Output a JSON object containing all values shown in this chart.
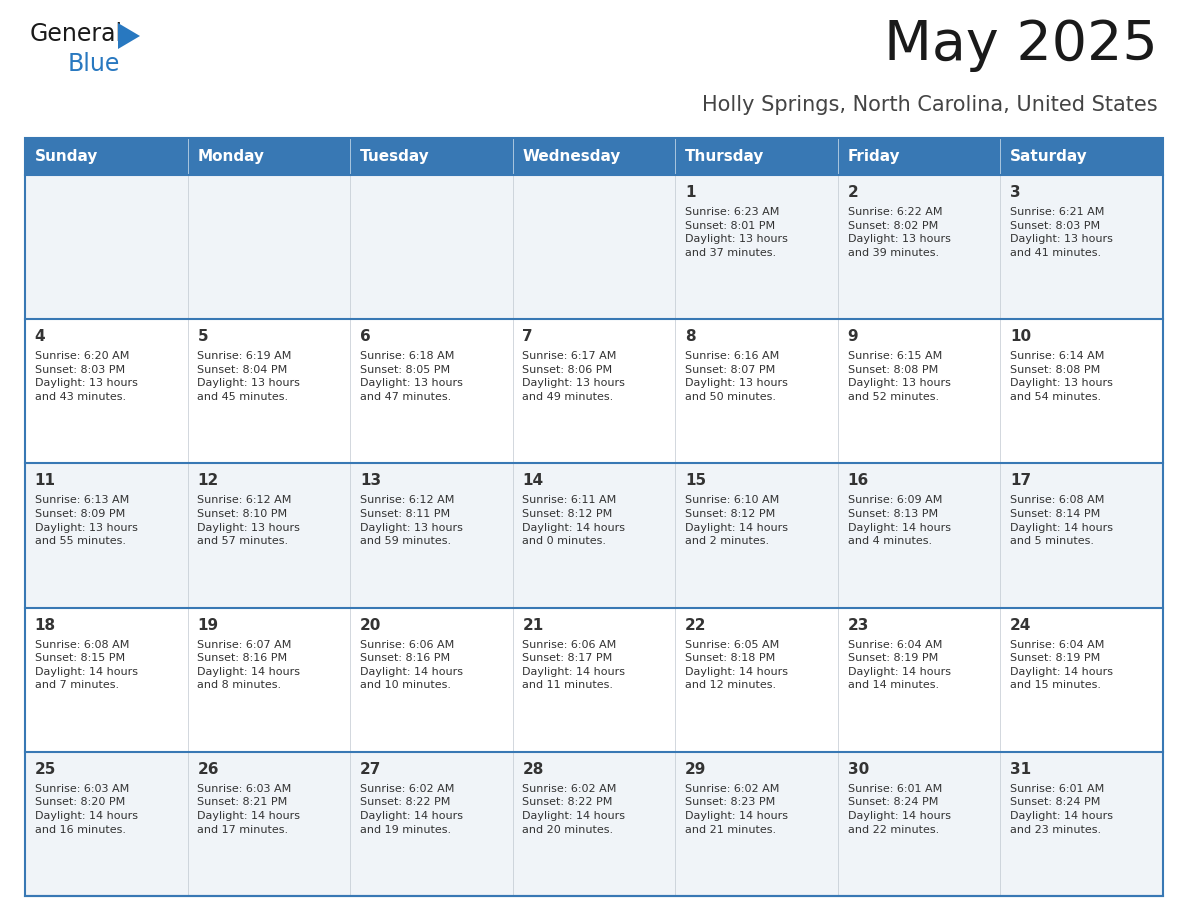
{
  "title": "May 2025",
  "subtitle": "Holly Springs, North Carolina, United States",
  "days_of_week": [
    "Sunday",
    "Monday",
    "Tuesday",
    "Wednesday",
    "Thursday",
    "Friday",
    "Saturday"
  ],
  "header_bg": "#3878b4",
  "header_text_color": "#ffffff",
  "cell_bg_light": "#f0f4f8",
  "cell_bg_white": "#ffffff",
  "divider_color": "#3878b4",
  "text_color": "#333333",
  "day_num_color": "#333333",
  "title_color": "#1a1a1a",
  "subtitle_color": "#444444",
  "logo_general_color": "#1a1a1a",
  "logo_blue_color": "#2878c0",
  "weeks": [
    [
      {
        "day": null,
        "info": null
      },
      {
        "day": null,
        "info": null
      },
      {
        "day": null,
        "info": null
      },
      {
        "day": null,
        "info": null
      },
      {
        "day": 1,
        "info": "Sunrise: 6:23 AM\nSunset: 8:01 PM\nDaylight: 13 hours\nand 37 minutes."
      },
      {
        "day": 2,
        "info": "Sunrise: 6:22 AM\nSunset: 8:02 PM\nDaylight: 13 hours\nand 39 minutes."
      },
      {
        "day": 3,
        "info": "Sunrise: 6:21 AM\nSunset: 8:03 PM\nDaylight: 13 hours\nand 41 minutes."
      }
    ],
    [
      {
        "day": 4,
        "info": "Sunrise: 6:20 AM\nSunset: 8:03 PM\nDaylight: 13 hours\nand 43 minutes."
      },
      {
        "day": 5,
        "info": "Sunrise: 6:19 AM\nSunset: 8:04 PM\nDaylight: 13 hours\nand 45 minutes."
      },
      {
        "day": 6,
        "info": "Sunrise: 6:18 AM\nSunset: 8:05 PM\nDaylight: 13 hours\nand 47 minutes."
      },
      {
        "day": 7,
        "info": "Sunrise: 6:17 AM\nSunset: 8:06 PM\nDaylight: 13 hours\nand 49 minutes."
      },
      {
        "day": 8,
        "info": "Sunrise: 6:16 AM\nSunset: 8:07 PM\nDaylight: 13 hours\nand 50 minutes."
      },
      {
        "day": 9,
        "info": "Sunrise: 6:15 AM\nSunset: 8:08 PM\nDaylight: 13 hours\nand 52 minutes."
      },
      {
        "day": 10,
        "info": "Sunrise: 6:14 AM\nSunset: 8:08 PM\nDaylight: 13 hours\nand 54 minutes."
      }
    ],
    [
      {
        "day": 11,
        "info": "Sunrise: 6:13 AM\nSunset: 8:09 PM\nDaylight: 13 hours\nand 55 minutes."
      },
      {
        "day": 12,
        "info": "Sunrise: 6:12 AM\nSunset: 8:10 PM\nDaylight: 13 hours\nand 57 minutes."
      },
      {
        "day": 13,
        "info": "Sunrise: 6:12 AM\nSunset: 8:11 PM\nDaylight: 13 hours\nand 59 minutes."
      },
      {
        "day": 14,
        "info": "Sunrise: 6:11 AM\nSunset: 8:12 PM\nDaylight: 14 hours\nand 0 minutes."
      },
      {
        "day": 15,
        "info": "Sunrise: 6:10 AM\nSunset: 8:12 PM\nDaylight: 14 hours\nand 2 minutes."
      },
      {
        "day": 16,
        "info": "Sunrise: 6:09 AM\nSunset: 8:13 PM\nDaylight: 14 hours\nand 4 minutes."
      },
      {
        "day": 17,
        "info": "Sunrise: 6:08 AM\nSunset: 8:14 PM\nDaylight: 14 hours\nand 5 minutes."
      }
    ],
    [
      {
        "day": 18,
        "info": "Sunrise: 6:08 AM\nSunset: 8:15 PM\nDaylight: 14 hours\nand 7 minutes."
      },
      {
        "day": 19,
        "info": "Sunrise: 6:07 AM\nSunset: 8:16 PM\nDaylight: 14 hours\nand 8 minutes."
      },
      {
        "day": 20,
        "info": "Sunrise: 6:06 AM\nSunset: 8:16 PM\nDaylight: 14 hours\nand 10 minutes."
      },
      {
        "day": 21,
        "info": "Sunrise: 6:06 AM\nSunset: 8:17 PM\nDaylight: 14 hours\nand 11 minutes."
      },
      {
        "day": 22,
        "info": "Sunrise: 6:05 AM\nSunset: 8:18 PM\nDaylight: 14 hours\nand 12 minutes."
      },
      {
        "day": 23,
        "info": "Sunrise: 6:04 AM\nSunset: 8:19 PM\nDaylight: 14 hours\nand 14 minutes."
      },
      {
        "day": 24,
        "info": "Sunrise: 6:04 AM\nSunset: 8:19 PM\nDaylight: 14 hours\nand 15 minutes."
      }
    ],
    [
      {
        "day": 25,
        "info": "Sunrise: 6:03 AM\nSunset: 8:20 PM\nDaylight: 14 hours\nand 16 minutes."
      },
      {
        "day": 26,
        "info": "Sunrise: 6:03 AM\nSunset: 8:21 PM\nDaylight: 14 hours\nand 17 minutes."
      },
      {
        "day": 27,
        "info": "Sunrise: 6:02 AM\nSunset: 8:22 PM\nDaylight: 14 hours\nand 19 minutes."
      },
      {
        "day": 28,
        "info": "Sunrise: 6:02 AM\nSunset: 8:22 PM\nDaylight: 14 hours\nand 20 minutes."
      },
      {
        "day": 29,
        "info": "Sunrise: 6:02 AM\nSunset: 8:23 PM\nDaylight: 14 hours\nand 21 minutes."
      },
      {
        "day": 30,
        "info": "Sunrise: 6:01 AM\nSunset: 8:24 PM\nDaylight: 14 hours\nand 22 minutes."
      },
      {
        "day": 31,
        "info": "Sunrise: 6:01 AM\nSunset: 8:24 PM\nDaylight: 14 hours\nand 23 minutes."
      }
    ]
  ]
}
